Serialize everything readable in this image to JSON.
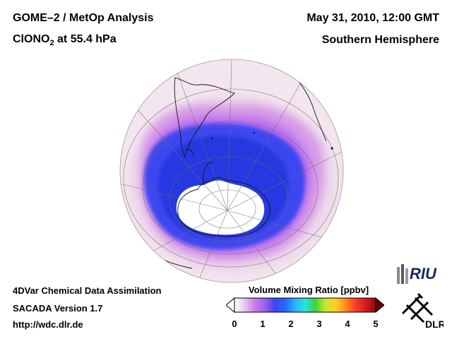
{
  "header": {
    "title": "GOME–2 / MetOp Analysis",
    "species_prefix": "ClONO",
    "species_subscript": "2",
    "species_suffix": " at 55.4 hPa",
    "date": "May 31, 2010, 12:00 GMT",
    "region": "Southern Hemisphere"
  },
  "footer": {
    "line1": "4DVar Chemical Data Assimilation",
    "line2": "SACADA Version 1.7",
    "line3": "http://wdc.dlr.de"
  },
  "colorbar": {
    "title": "Volume Mixing Ratio [ppbv]",
    "ticks": [
      "0",
      "1",
      "2",
      "3",
      "4",
      "5"
    ],
    "colors": [
      "#ffffff",
      "#e6c8f0",
      "#c87ce8",
      "#a060f0",
      "#3c46f0",
      "#2864ff",
      "#28b4ff",
      "#28e6dc",
      "#3cd23c",
      "#c8e628",
      "#ffd228",
      "#ff8c1e",
      "#ff3c28",
      "#d21e1e",
      "#8c0a0a"
    ]
  },
  "logos": {
    "riu": "RIU",
    "dlr": "DLR"
  },
  "map": {
    "projection": "orthographic, south polar view",
    "background_color": "#f3e6ee",
    "ocean_low_color": "#efd9ec",
    "mid_color": "#d79be6",
    "ring_color": "#b96cf0",
    "vortex_color": "#3c46f0",
    "vortex_core_color": "#2838e0",
    "polar_core_color": "#ffffff"
  }
}
